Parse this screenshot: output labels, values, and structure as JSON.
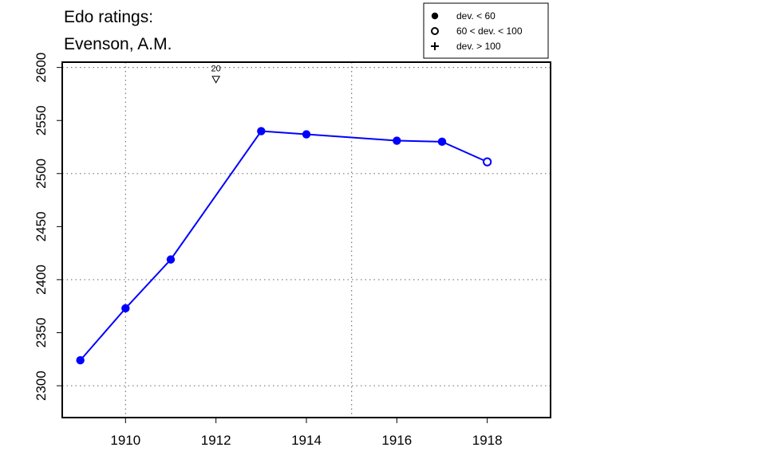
{
  "chart_data": {
    "type": "line",
    "title_lines": [
      "Edo ratings:",
      "Evenson, A.M."
    ],
    "xlabel": "",
    "ylabel": "",
    "xlim": [
      1908.6,
      1919.4
    ],
    "ylim": [
      2270,
      2605
    ],
    "x_ticks": [
      1910,
      1912,
      1914,
      1916,
      1918
    ],
    "y_ticks": [
      2300,
      2350,
      2400,
      2450,
      2500,
      2550,
      2600
    ],
    "x_grid": [
      1910,
      1915
    ],
    "y_grid": [
      2300,
      2400,
      2500,
      2600
    ],
    "grid": true,
    "line_color": "#0000ff",
    "points": [
      {
        "x": 1909,
        "y": 2324,
        "dev": "low"
      },
      {
        "x": 1910,
        "y": 2373,
        "dev": "low"
      },
      {
        "x": 1911,
        "y": 2419,
        "dev": "low"
      },
      {
        "x": 1913,
        "y": 2540,
        "dev": "low"
      },
      {
        "x": 1914,
        "y": 2537,
        "dev": "low"
      },
      {
        "x": 1916,
        "y": 2531,
        "dev": "low"
      },
      {
        "x": 1917,
        "y": 2530,
        "dev": "low"
      },
      {
        "x": 1918,
        "y": 2511,
        "dev": "mid"
      }
    ],
    "annotations": [
      {
        "x": 1912,
        "y": 2589,
        "label": "20",
        "marker": "down-triangle"
      }
    ],
    "legend": {
      "placement": "top-right",
      "entries": [
        {
          "symbol": "filled-circle",
          "label": "dev. < 60"
        },
        {
          "symbol": "open-circle",
          "label": "60 < dev. < 100"
        },
        {
          "symbol": "plus",
          "label": "dev. > 100"
        }
      ]
    }
  }
}
